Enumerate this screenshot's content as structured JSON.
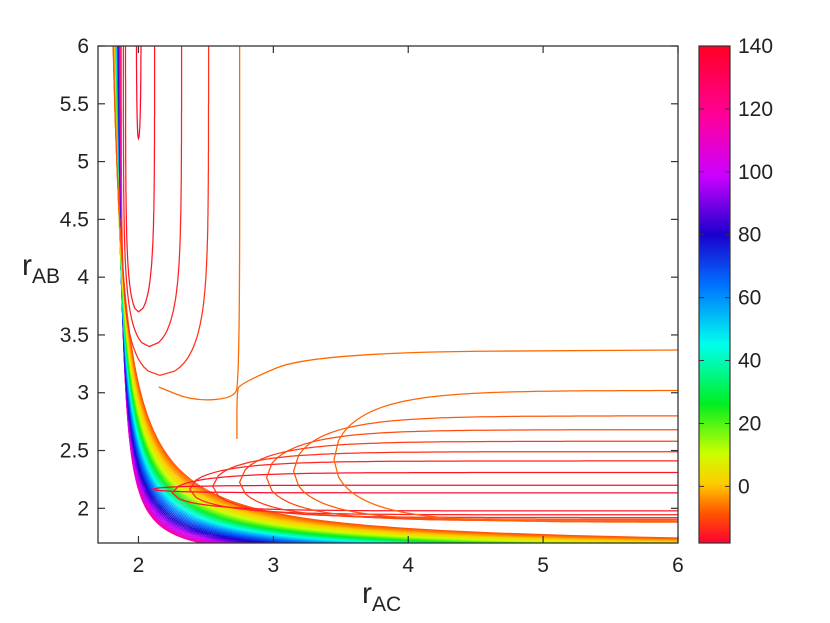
{
  "chart_data": {
    "type": "contour",
    "xlabel": {
      "main": "r",
      "sub": "AC"
    },
    "ylabel": {
      "main": "r",
      "sub": "AB"
    },
    "xlim": [
      1.7,
      6
    ],
    "ylim": [
      1.7,
      6
    ],
    "xticks": [
      2,
      3,
      4,
      5,
      6
    ],
    "yticks": [
      2,
      2.5,
      3,
      3.5,
      4,
      4.5,
      5,
      5.5,
      6
    ],
    "xtick_labels": [
      "2",
      "3",
      "4",
      "5",
      "6"
    ],
    "ytick_labels": [
      "2",
      "2.5",
      "3",
      "3.5",
      "4",
      "4.5",
      "5",
      "5.5",
      "6"
    ],
    "colorbar": {
      "range": [
        -18,
        140
      ],
      "ticks": [
        0,
        20,
        40,
        60,
        80,
        100,
        120,
        140
      ],
      "tick_labels": [
        "0",
        "20",
        "40",
        "60",
        "80",
        "100",
        "120",
        "140"
      ],
      "colormap": [
        "#ff0033",
        "#ff6a00",
        "#ffcc00",
        "#ccff00",
        "#00ee22",
        "#00ffee",
        "#0070ff",
        "#1a00cc",
        "#cc00ff",
        "#ff0099",
        "#ff0022"
      ]
    },
    "wells": [
      {
        "region": "x-well",
        "axis": "AC",
        "minimum_location": [
          6,
          2.1
        ],
        "contour_turn_points": [
          2.1,
          2.25,
          2.38,
          2.55,
          2.75,
          2.95,
          3.15,
          3.45,
          3.7,
          4.0
        ],
        "contour_asymptotes": [
          2.17,
          2.31,
          2.41,
          2.49,
          2.58,
          2.68,
          2.8,
          3.02,
          1.9,
          1.85,
          1.8,
          1.76
        ]
      },
      {
        "region": "y-well",
        "axis": "AB",
        "minimum_location": [
          2.0,
          6
        ],
        "contour_turn_points": [
          5.2,
          3.7,
          3.4,
          3.15
        ],
        "contour_asymptotes": [
          2.01,
          2.1,
          2.23,
          2.33,
          2.5
        ]
      }
    ],
    "separatrix": [
      {
        "x": [
          2.75,
          2.75,
          2.7,
          2.4,
          2.15
        ],
        "y": [
          6,
          3.08,
          2.95,
          2.93,
          3.05
        ]
      },
      {
        "x": [
          2.73,
          2.73,
          2.75,
          3.3,
          6
        ],
        "y": [
          2.6,
          3.0,
          3.08,
          3.35,
          3.37
        ]
      }
    ]
  }
}
